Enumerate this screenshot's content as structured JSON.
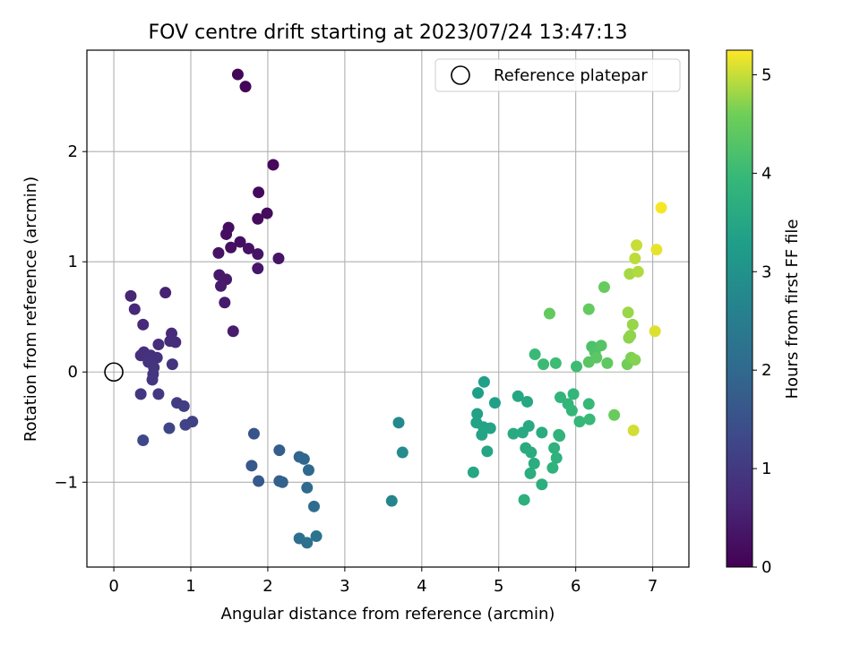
{
  "chart_data": {
    "type": "scatter",
    "title": "FOV centre drift starting at 2023/07/24 13:47:13",
    "xlabel": "Angular distance from reference (arcmin)",
    "ylabel": "Rotation from reference (arcmin)",
    "xlim": [
      -0.35,
      7.47
    ],
    "ylim": [
      -1.77,
      2.92
    ],
    "xticks": [
      0,
      1,
      2,
      3,
      4,
      5,
      6,
      7
    ],
    "yticks": [
      -1,
      0,
      1,
      2
    ],
    "grid": true,
    "legend": {
      "placement": "top-right",
      "entries": [
        "Reference platepar"
      ]
    },
    "reference_point": {
      "x": 0,
      "y": 0
    },
    "colorbar": {
      "label": "Hours from first FF file",
      "range": [
        0,
        5.25
      ],
      "ticks": [
        0,
        1,
        2,
        3,
        4,
        5
      ],
      "colormap": "viridis"
    },
    "points": [
      {
        "x": 1.61,
        "y": 2.7,
        "c": 0.05
      },
      {
        "x": 1.71,
        "y": 2.59,
        "c": 0.08
      },
      {
        "x": 2.07,
        "y": 1.88,
        "c": 0.12
      },
      {
        "x": 1.88,
        "y": 1.63,
        "c": 0.14
      },
      {
        "x": 1.99,
        "y": 1.44,
        "c": 0.16
      },
      {
        "x": 1.87,
        "y": 1.39,
        "c": 0.18
      },
      {
        "x": 1.49,
        "y": 1.31,
        "c": 0.2
      },
      {
        "x": 1.46,
        "y": 1.25,
        "c": 0.22
      },
      {
        "x": 1.64,
        "y": 1.18,
        "c": 0.24
      },
      {
        "x": 1.52,
        "y": 1.13,
        "c": 0.26
      },
      {
        "x": 1.75,
        "y": 1.12,
        "c": 0.28
      },
      {
        "x": 1.36,
        "y": 1.08,
        "c": 0.3
      },
      {
        "x": 1.87,
        "y": 1.07,
        "c": 0.32
      },
      {
        "x": 2.14,
        "y": 1.03,
        "c": 0.34
      },
      {
        "x": 1.87,
        "y": 0.94,
        "c": 0.36
      },
      {
        "x": 1.37,
        "y": 0.88,
        "c": 0.38
      },
      {
        "x": 1.46,
        "y": 0.84,
        "c": 0.4
      },
      {
        "x": 1.39,
        "y": 0.78,
        "c": 0.42
      },
      {
        "x": 1.44,
        "y": 0.63,
        "c": 0.44
      },
      {
        "x": 1.55,
        "y": 0.37,
        "c": 0.46
      },
      {
        "x": 0.67,
        "y": 0.72,
        "c": 0.55
      },
      {
        "x": 0.22,
        "y": 0.69,
        "c": 0.62
      },
      {
        "x": 0.27,
        "y": 0.57,
        "c": 0.66
      },
      {
        "x": 0.38,
        "y": 0.43,
        "c": 0.7
      },
      {
        "x": 0.75,
        "y": 0.35,
        "c": 0.72
      },
      {
        "x": 0.73,
        "y": 0.28,
        "c": 0.74
      },
      {
        "x": 0.8,
        "y": 0.27,
        "c": 0.76
      },
      {
        "x": 0.58,
        "y": 0.25,
        "c": 0.78
      },
      {
        "x": 0.39,
        "y": 0.18,
        "c": 0.8
      },
      {
        "x": 0.35,
        "y": 0.15,
        "c": 0.82
      },
      {
        "x": 0.48,
        "y": 0.15,
        "c": 0.84
      },
      {
        "x": 0.56,
        "y": 0.13,
        "c": 0.86
      },
      {
        "x": 0.45,
        "y": 0.09,
        "c": 0.88
      },
      {
        "x": 0.76,
        "y": 0.07,
        "c": 0.9
      },
      {
        "x": 0.52,
        "y": 0.04,
        "c": 0.92
      },
      {
        "x": 0.51,
        "y": -0.02,
        "c": 0.94
      },
      {
        "x": 0.5,
        "y": -0.07,
        "c": 0.96
      },
      {
        "x": 0.35,
        "y": -0.2,
        "c": 0.98
      },
      {
        "x": 0.58,
        "y": -0.2,
        "c": 1.0
      },
      {
        "x": 0.82,
        "y": -0.28,
        "c": 1.05
      },
      {
        "x": 0.91,
        "y": -0.31,
        "c": 1.1
      },
      {
        "x": 1.02,
        "y": -0.45,
        "c": 1.15
      },
      {
        "x": 0.93,
        "y": -0.48,
        "c": 1.2
      },
      {
        "x": 0.72,
        "y": -0.51,
        "c": 1.25
      },
      {
        "x": 0.38,
        "y": -0.62,
        "c": 1.3
      },
      {
        "x": 1.82,
        "y": -0.56,
        "c": 1.55
      },
      {
        "x": 1.79,
        "y": -0.85,
        "c": 1.6
      },
      {
        "x": 1.88,
        "y": -0.99,
        "c": 1.65
      },
      {
        "x": 2.15,
        "y": -0.71,
        "c": 1.75
      },
      {
        "x": 2.15,
        "y": -0.99,
        "c": 1.8
      },
      {
        "x": 2.19,
        "y": -1.0,
        "c": 1.85
      },
      {
        "x": 2.41,
        "y": -0.77,
        "c": 1.9
      },
      {
        "x": 2.47,
        "y": -0.79,
        "c": 1.95
      },
      {
        "x": 2.53,
        "y": -0.89,
        "c": 2.0
      },
      {
        "x": 2.51,
        "y": -1.05,
        "c": 2.05
      },
      {
        "x": 2.6,
        "y": -1.22,
        "c": 2.1
      },
      {
        "x": 2.41,
        "y": -1.51,
        "c": 2.15
      },
      {
        "x": 2.51,
        "y": -1.55,
        "c": 2.2
      },
      {
        "x": 2.63,
        "y": -1.49,
        "c": 2.25
      },
      {
        "x": 3.61,
        "y": -1.17,
        "c": 2.7
      },
      {
        "x": 3.7,
        "y": -0.46,
        "c": 2.78
      },
      {
        "x": 3.75,
        "y": -0.73,
        "c": 2.85
      },
      {
        "x": 4.81,
        "y": -0.09,
        "c": 3.3
      },
      {
        "x": 4.73,
        "y": -0.19,
        "c": 3.32
      },
      {
        "x": 4.95,
        "y": -0.28,
        "c": 3.34
      },
      {
        "x": 4.72,
        "y": -0.38,
        "c": 3.36
      },
      {
        "x": 4.71,
        "y": -0.46,
        "c": 3.38
      },
      {
        "x": 4.8,
        "y": -0.5,
        "c": 3.4
      },
      {
        "x": 4.89,
        "y": -0.51,
        "c": 3.42
      },
      {
        "x": 4.78,
        "y": -0.57,
        "c": 3.44
      },
      {
        "x": 4.85,
        "y": -0.72,
        "c": 3.46
      },
      {
        "x": 4.67,
        "y": -0.91,
        "c": 3.48
      },
      {
        "x": 5.25,
        "y": -0.22,
        "c": 3.5
      },
      {
        "x": 5.37,
        "y": -0.27,
        "c": 3.52
      },
      {
        "x": 5.39,
        "y": -0.49,
        "c": 3.54
      },
      {
        "x": 5.31,
        "y": -0.55,
        "c": 3.56
      },
      {
        "x": 5.19,
        "y": -0.56,
        "c": 3.58
      },
      {
        "x": 5.35,
        "y": -0.69,
        "c": 3.6
      },
      {
        "x": 5.42,
        "y": -0.73,
        "c": 3.62
      },
      {
        "x": 5.56,
        "y": -0.55,
        "c": 3.64
      },
      {
        "x": 5.46,
        "y": -0.83,
        "c": 3.66
      },
      {
        "x": 5.41,
        "y": -0.92,
        "c": 3.68
      },
      {
        "x": 5.56,
        "y": -1.02,
        "c": 3.7
      },
      {
        "x": 5.33,
        "y": -1.16,
        "c": 3.72
      },
      {
        "x": 5.72,
        "y": -0.69,
        "c": 3.75
      },
      {
        "x": 5.75,
        "y": -0.78,
        "c": 3.78
      },
      {
        "x": 5.7,
        "y": -0.87,
        "c": 3.8
      },
      {
        "x": 5.78,
        "y": -0.57,
        "c": 3.82
      },
      {
        "x": 5.79,
        "y": -0.58,
        "c": 3.84
      },
      {
        "x": 5.8,
        "y": -0.23,
        "c": 3.86
      },
      {
        "x": 5.9,
        "y": -0.29,
        "c": 3.88
      },
      {
        "x": 5.97,
        "y": -0.2,
        "c": 3.9
      },
      {
        "x": 5.95,
        "y": -0.35,
        "c": 3.92
      },
      {
        "x": 6.05,
        "y": -0.45,
        "c": 3.94
      },
      {
        "x": 6.17,
        "y": -0.29,
        "c": 3.96
      },
      {
        "x": 6.18,
        "y": -0.43,
        "c": 3.98
      },
      {
        "x": 5.47,
        "y": 0.16,
        "c": 4.0
      },
      {
        "x": 5.58,
        "y": 0.07,
        "c": 4.02
      },
      {
        "x": 5.74,
        "y": 0.08,
        "c": 4.04
      },
      {
        "x": 6.01,
        "y": 0.05,
        "c": 4.06
      },
      {
        "x": 6.21,
        "y": 0.23,
        "c": 4.2
      },
      {
        "x": 6.25,
        "y": 0.18,
        "c": 4.25
      },
      {
        "x": 6.33,
        "y": 0.24,
        "c": 4.3
      },
      {
        "x": 6.17,
        "y": 0.09,
        "c": 4.35
      },
      {
        "x": 6.27,
        "y": 0.13,
        "c": 4.38
      },
      {
        "x": 6.41,
        "y": 0.08,
        "c": 4.42
      },
      {
        "x": 5.66,
        "y": 0.53,
        "c": 4.45
      },
      {
        "x": 6.17,
        "y": 0.57,
        "c": 4.48
      },
      {
        "x": 6.37,
        "y": 0.77,
        "c": 4.5
      },
      {
        "x": 6.5,
        "y": -0.39,
        "c": 4.52
      },
      {
        "x": 6.67,
        "y": 0.07,
        "c": 4.6
      },
      {
        "x": 6.72,
        "y": 0.13,
        "c": 4.65
      },
      {
        "x": 6.77,
        "y": 0.11,
        "c": 4.7
      },
      {
        "x": 6.69,
        "y": 0.31,
        "c": 4.72
      },
      {
        "x": 6.71,
        "y": 0.33,
        "c": 4.75
      },
      {
        "x": 6.74,
        "y": 0.43,
        "c": 4.78
      },
      {
        "x": 6.68,
        "y": 0.54,
        "c": 4.8
      },
      {
        "x": 6.7,
        "y": 0.89,
        "c": 4.85
      },
      {
        "x": 6.81,
        "y": 0.91,
        "c": 4.9
      },
      {
        "x": 6.77,
        "y": 1.03,
        "c": 4.95
      },
      {
        "x": 6.79,
        "y": 1.15,
        "c": 5.0
      },
      {
        "x": 6.75,
        "y": -0.53,
        "c": 5.05
      },
      {
        "x": 7.03,
        "y": 0.37,
        "c": 5.1
      },
      {
        "x": 7.05,
        "y": 1.11,
        "c": 5.15
      },
      {
        "x": 7.11,
        "y": 1.49,
        "c": 5.22
      }
    ]
  }
}
